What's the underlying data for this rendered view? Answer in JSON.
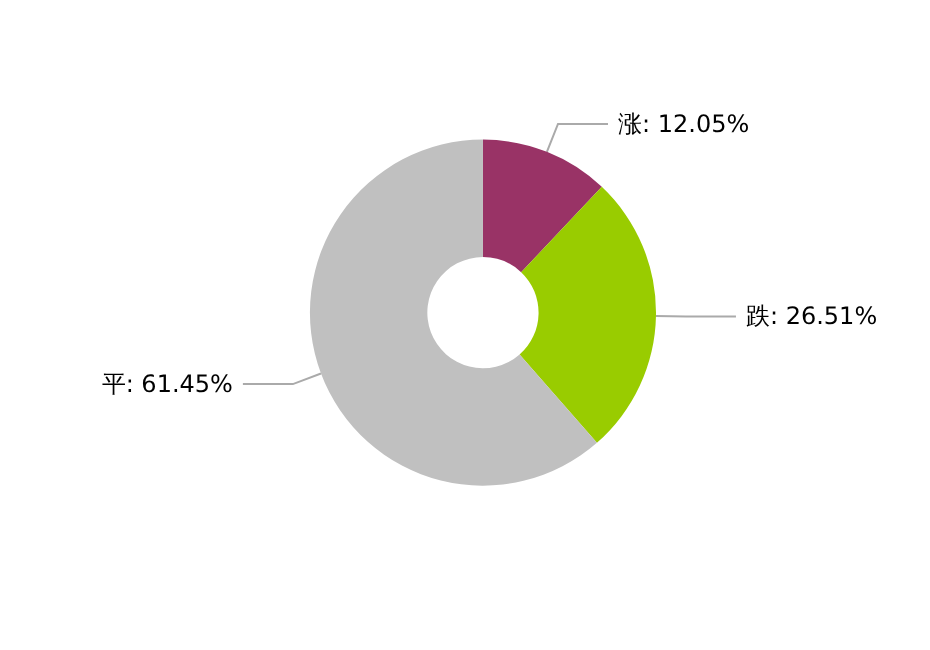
{
  "chart_data": {
    "type": "donut",
    "categories": [
      "涨",
      "跌",
      "平"
    ],
    "values": [
      12.05,
      26.51,
      61.45
    ],
    "colors": [
      "#993366",
      "#99cc00",
      "#c0c0c0"
    ],
    "value_labels": [
      "12.05%",
      "26.51%",
      "61.45%"
    ],
    "legend": false
  }
}
